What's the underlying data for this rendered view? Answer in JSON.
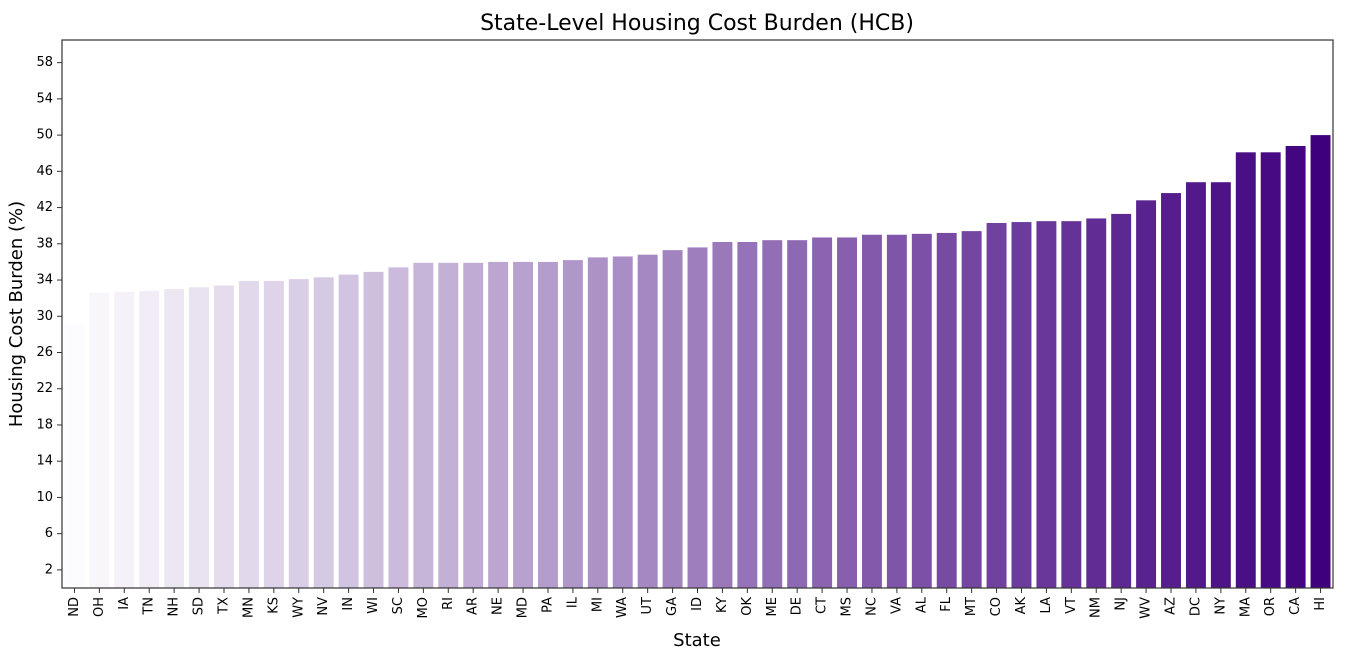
{
  "chart_data": {
    "type": "bar",
    "title": "State-Level Housing Cost Burden (HCB)",
    "xlabel": "State",
    "ylabel": "Housing Cost Burden (%)",
    "ylim": [
      0,
      60.5
    ],
    "yticks": [
      2,
      6,
      10,
      14,
      18,
      22,
      26,
      30,
      34,
      38,
      42,
      46,
      50,
      54,
      58
    ],
    "grid": false,
    "color_range": [
      "#fcfbfd",
      "#3f007d"
    ],
    "categories": [
      "ND",
      "OH",
      "IA",
      "TN",
      "NH",
      "SD",
      "TX",
      "MN",
      "KS",
      "WY",
      "NV",
      "IN",
      "WI",
      "SC",
      "MO",
      "RI",
      "AR",
      "NE",
      "MD",
      "PA",
      "IL",
      "MI",
      "WA",
      "UT",
      "GA",
      "ID",
      "KY",
      "OK",
      "ME",
      "DE",
      "CT",
      "MS",
      "NC",
      "VA",
      "AL",
      "FL",
      "MT",
      "CO",
      "AK",
      "LA",
      "VT",
      "NM",
      "NJ",
      "WV",
      "AZ",
      "DC",
      "NY",
      "MA",
      "OR",
      "CA",
      "HI"
    ],
    "values": [
      29.1,
      32.6,
      32.7,
      32.8,
      33.0,
      33.2,
      33.4,
      33.9,
      33.9,
      34.1,
      34.3,
      34.6,
      34.9,
      35.4,
      35.9,
      35.9,
      35.9,
      36.0,
      36.0,
      36.0,
      36.2,
      36.5,
      36.6,
      36.8,
      37.3,
      37.6,
      38.2,
      38.2,
      38.4,
      38.4,
      38.7,
      38.7,
      39.0,
      39.0,
      39.1,
      39.2,
      39.4,
      40.3,
      40.4,
      40.5,
      40.5,
      40.8,
      41.3,
      42.8,
      43.6,
      44.8,
      44.8,
      48.1,
      48.1,
      48.8,
      50.0
    ]
  }
}
